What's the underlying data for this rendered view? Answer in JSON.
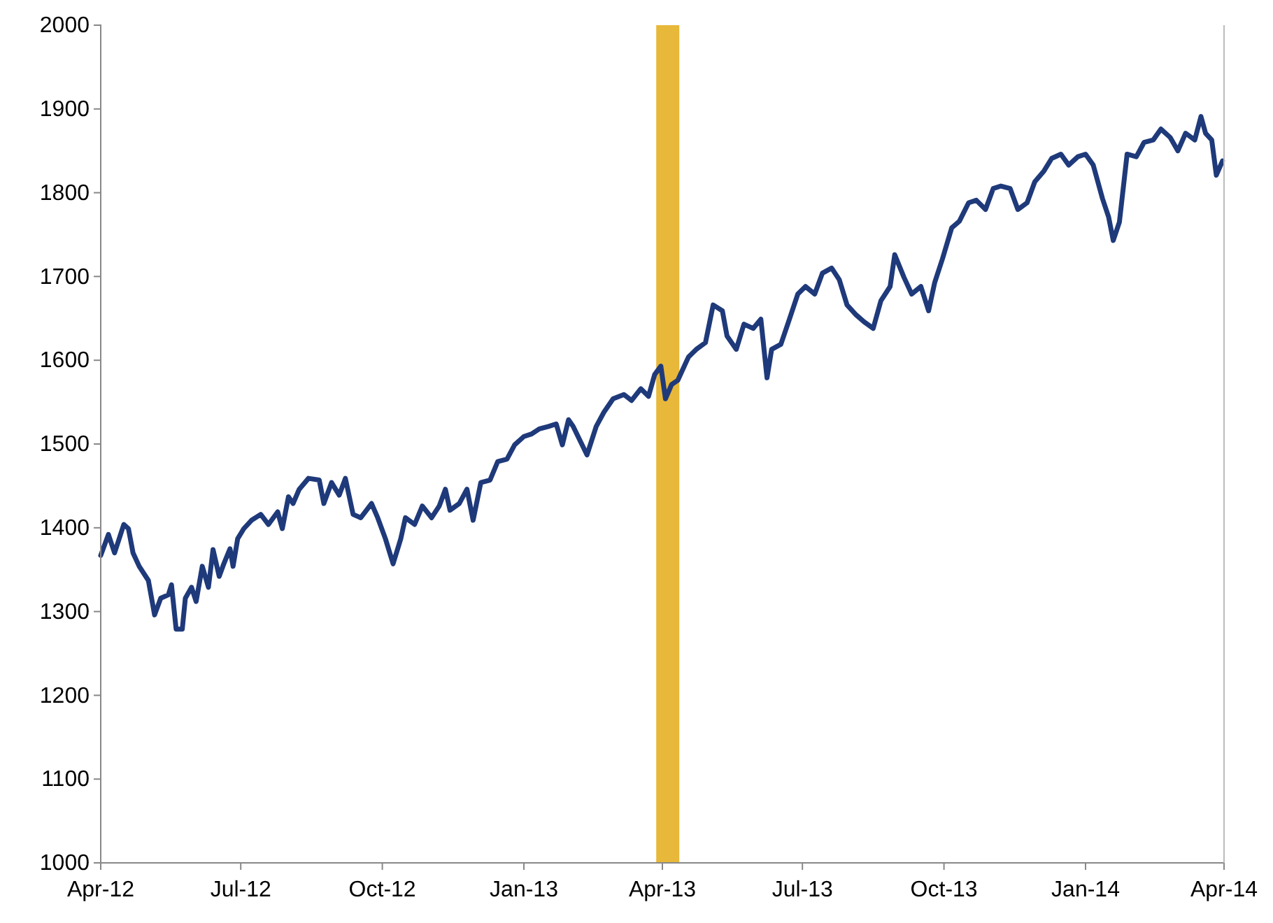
{
  "chart_data": {
    "type": "line",
    "xlim": [
      "2012-04-01",
      "2014-04-01"
    ],
    "ylim": [
      1000,
      2000
    ],
    "xticks": [
      {
        "value": "2012-04-01",
        "label": "Apr-12"
      },
      {
        "value": "2012-07-01",
        "label": "Jul-12"
      },
      {
        "value": "2012-10-01",
        "label": "Oct-12"
      },
      {
        "value": "2013-01-01",
        "label": "Jan-13"
      },
      {
        "value": "2013-04-01",
        "label": "Apr-13"
      },
      {
        "value": "2013-07-01",
        "label": "Jul-13"
      },
      {
        "value": "2013-10-01",
        "label": "Oct-13"
      },
      {
        "value": "2014-01-01",
        "label": "Jan-14"
      },
      {
        "value": "2014-04-01",
        "label": "Apr-14"
      }
    ],
    "yticks": [
      1000,
      1100,
      1200,
      1300,
      1400,
      1500,
      1600,
      1700,
      1800,
      1900,
      2000
    ],
    "grid": false,
    "marker": "none",
    "line_style": "solid",
    "bands": [
      {
        "axis": "x",
        "from": "2013-03-28",
        "to": "2013-04-12",
        "color": "#e8b83a"
      }
    ],
    "x": [
      "2012-04-01",
      "2012-04-06",
      "2012-04-10",
      "2012-04-16",
      "2012-04-19",
      "2012-04-22",
      "2012-04-26",
      "2012-05-02",
      "2012-05-06",
      "2012-05-10",
      "2012-05-15",
      "2012-05-17",
      "2012-05-20",
      "2012-05-24",
      "2012-05-26",
      "2012-05-30",
      "2012-06-02",
      "2012-06-06",
      "2012-06-10",
      "2012-06-13",
      "2012-06-17",
      "2012-06-20",
      "2012-06-24",
      "2012-06-26",
      "2012-06-29",
      "2012-07-03",
      "2012-07-08",
      "2012-07-14",
      "2012-07-19",
      "2012-07-25",
      "2012-07-28",
      "2012-08-01",
      "2012-08-04",
      "2012-08-08",
      "2012-08-14",
      "2012-08-21",
      "2012-08-24",
      "2012-08-29",
      "2012-09-03",
      "2012-09-07",
      "2012-09-12",
      "2012-09-17",
      "2012-09-24",
      "2012-09-28",
      "2012-10-03",
      "2012-10-08",
      "2012-10-13",
      "2012-10-16",
      "2012-10-22",
      "2012-10-27",
      "2012-11-02",
      "2012-11-07",
      "2012-11-11",
      "2012-11-14",
      "2012-11-20",
      "2012-11-25",
      "2012-11-29",
      "2012-12-04",
      "2012-12-10",
      "2012-12-15",
      "2012-12-21",
      "2012-12-26",
      "2013-01-01",
      "2013-01-06",
      "2013-01-11",
      "2013-01-17",
      "2013-01-22",
      "2013-01-26",
      "2013-01-30",
      "2013-02-02",
      "2013-02-11",
      "2013-02-17",
      "2013-02-22",
      "2013-02-28",
      "2013-03-07",
      "2013-03-12",
      "2013-03-18",
      "2013-03-23",
      "2013-03-27",
      "2013-03-31",
      "2013-04-03",
      "2013-04-07",
      "2013-04-11",
      "2013-04-14",
      "2013-04-18",
      "2013-04-23",
      "2013-04-29",
      "2013-05-04",
      "2013-05-10",
      "2013-05-13",
      "2013-05-19",
      "2013-05-24",
      "2013-05-30",
      "2013-06-04",
      "2013-06-08",
      "2013-06-11",
      "2013-06-17",
      "2013-06-22",
      "2013-06-28",
      "2013-07-03",
      "2013-07-09",
      "2013-07-14",
      "2013-07-20",
      "2013-07-25",
      "2013-07-30",
      "2013-08-05",
      "2013-08-10",
      "2013-08-16",
      "2013-08-21",
      "2013-08-27",
      "2013-08-30",
      "2013-09-05",
      "2013-09-10",
      "2013-09-16",
      "2013-09-21",
      "2013-09-25",
      "2013-09-30",
      "2013-10-06",
      "2013-10-11",
      "2013-10-17",
      "2013-10-22",
      "2013-10-28",
      "2013-11-02",
      "2013-11-07",
      "2013-11-13",
      "2013-11-18",
      "2013-11-24",
      "2013-11-29",
      "2013-12-05",
      "2013-12-10",
      "2013-12-16",
      "2013-12-21",
      "2013-12-27",
      "2014-01-01",
      "2014-01-06",
      "2014-01-12",
      "2014-01-16",
      "2014-01-19",
      "2014-01-23",
      "2014-01-28",
      "2014-02-03",
      "2014-02-08",
      "2014-02-14",
      "2014-02-19",
      "2014-02-25",
      "2014-03-02",
      "2014-03-07",
      "2014-03-13",
      "2014-03-17",
      "2014-03-20",
      "2014-03-24",
      "2014-03-27",
      "2014-03-31"
    ],
    "series": [
      {
        "color": "#1f3a7a",
        "values": [
          1367,
          1392,
          1370,
          1404,
          1399,
          1370,
          1354,
          1337,
          1296,
          1316,
          1320,
          1332,
          1279,
          1279,
          1316,
          1329,
          1312,
          1354,
          1329,
          1374,
          1342,
          1357,
          1375,
          1354,
          1387,
          1399,
          1409,
          1416,
          1404,
          1419,
          1399,
          1437,
          1429,
          1446,
          1459,
          1457,
          1429,
          1454,
          1439,
          1459,
          1416,
          1412,
          1429,
          1412,
          1387,
          1357,
          1387,
          1412,
          1404,
          1426,
          1412,
          1426,
          1446,
          1421,
          1429,
          1446,
          1409,
          1454,
          1457,
          1479,
          1482,
          1499,
          1509,
          1512,
          1518,
          1521,
          1524,
          1499,
          1529,
          1521,
          1487,
          1521,
          1538,
          1554,
          1559,
          1552,
          1566,
          1557,
          1583,
          1593,
          1554,
          1571,
          1576,
          1588,
          1604,
          1613,
          1621,
          1666,
          1659,
          1629,
          1613,
          1643,
          1638,
          1649,
          1579,
          1613,
          1619,
          1646,
          1679,
          1688,
          1679,
          1704,
          1710,
          1696,
          1666,
          1654,
          1646,
          1638,
          1671,
          1688,
          1726,
          1699,
          1679,
          1688,
          1659,
          1693,
          1721,
          1758,
          1766,
          1788,
          1791,
          1780,
          1805,
          1808,
          1805,
          1780,
          1788,
          1813,
          1826,
          1841,
          1846,
          1833,
          1843,
          1846,
          1833,
          1793,
          1771,
          1743,
          1765,
          1846,
          1843,
          1860,
          1863,
          1876,
          1866,
          1850,
          1871,
          1863,
          1891,
          1871,
          1863,
          1821,
          1838
        ]
      }
    ]
  }
}
